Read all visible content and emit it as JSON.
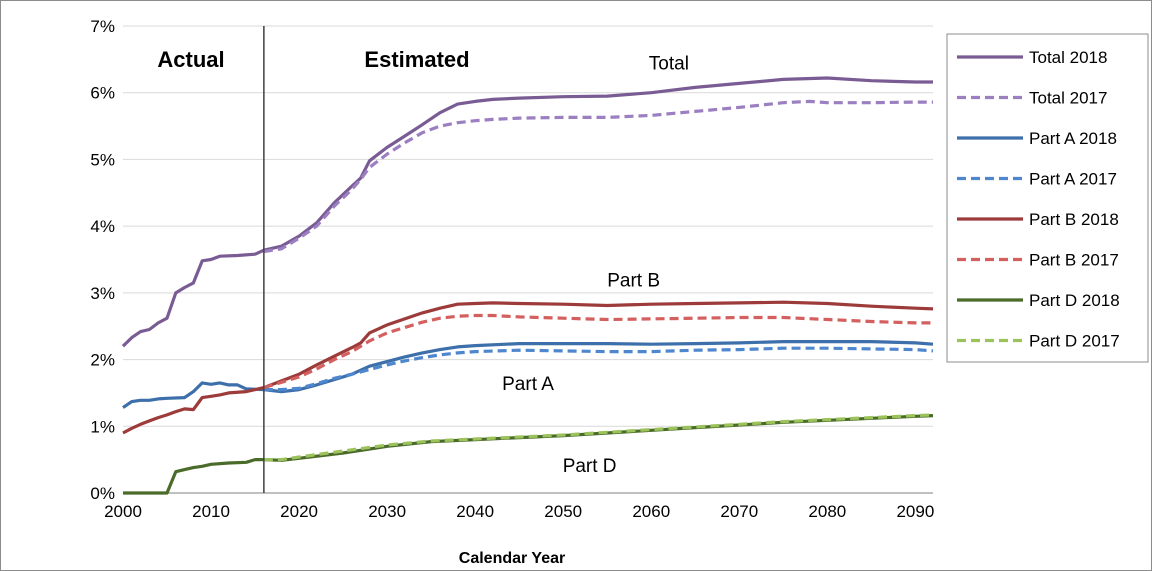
{
  "chart_data": {
    "type": "line",
    "xlabel": "Calendar Year",
    "ylabel": "",
    "xlim": [
      2000,
      2092
    ],
    "ylim": [
      0,
      7
    ],
    "x_ticks": [
      "2000",
      "2010",
      "2020",
      "2030",
      "2040",
      "2050",
      "2060",
      "2070",
      "2080",
      "2090"
    ],
    "y_ticks": [
      "0%",
      "1%",
      "2%",
      "3%",
      "4%",
      "5%",
      "6%",
      "7%"
    ],
    "region_labels": {
      "actual": "Actual",
      "estimated": "Estimated"
    },
    "divider_year": 2016,
    "annotations": [
      {
        "text": "Total",
        "x": 2062,
        "y": 6.45
      },
      {
        "text": "Part B",
        "x": 2058,
        "y": 3.2
      },
      {
        "text": "Part A",
        "x": 2046,
        "y": 1.65
      },
      {
        "text": "Part D",
        "x": 2053,
        "y": 0.42
      }
    ],
    "legend_position": "right",
    "grid": true,
    "series": [
      {
        "name": "Total 2018",
        "color": "#7a5c94",
        "dash": "solid",
        "points": [
          [
            2000,
            2.2
          ],
          [
            2001,
            2.33
          ],
          [
            2002,
            2.42
          ],
          [
            2003,
            2.45
          ],
          [
            2004,
            2.55
          ],
          [
            2005,
            2.62
          ],
          [
            2006,
            3.0
          ],
          [
            2007,
            3.08
          ],
          [
            2008,
            3.15
          ],
          [
            2009,
            3.48
          ],
          [
            2010,
            3.5
          ],
          [
            2011,
            3.55
          ],
          [
            2013,
            3.56
          ],
          [
            2015,
            3.58
          ],
          [
            2016,
            3.64
          ],
          [
            2018,
            3.7
          ],
          [
            2020,
            3.85
          ],
          [
            2022,
            4.05
          ],
          [
            2024,
            4.35
          ],
          [
            2026,
            4.6
          ],
          [
            2027,
            4.72
          ],
          [
            2028,
            4.98
          ],
          [
            2030,
            5.18
          ],
          [
            2032,
            5.35
          ],
          [
            2034,
            5.52
          ],
          [
            2036,
            5.7
          ],
          [
            2038,
            5.83
          ],
          [
            2040,
            5.87
          ],
          [
            2042,
            5.9
          ],
          [
            2045,
            5.92
          ],
          [
            2050,
            5.94
          ],
          [
            2055,
            5.95
          ],
          [
            2060,
            6.0
          ],
          [
            2065,
            6.08
          ],
          [
            2070,
            6.14
          ],
          [
            2075,
            6.2
          ],
          [
            2080,
            6.22
          ],
          [
            2085,
            6.18
          ],
          [
            2090,
            6.16
          ],
          [
            2092,
            6.16
          ]
        ]
      },
      {
        "name": "Total 2017",
        "color": "#9b7fc0",
        "dash": "dashed",
        "points": [
          [
            2016,
            3.62
          ],
          [
            2018,
            3.66
          ],
          [
            2020,
            3.82
          ],
          [
            2022,
            4.0
          ],
          [
            2024,
            4.3
          ],
          [
            2026,
            4.55
          ],
          [
            2027,
            4.7
          ],
          [
            2028,
            4.88
          ],
          [
            2030,
            5.08
          ],
          [
            2032,
            5.25
          ],
          [
            2034,
            5.4
          ],
          [
            2036,
            5.5
          ],
          [
            2038,
            5.55
          ],
          [
            2040,
            5.58
          ],
          [
            2042,
            5.6
          ],
          [
            2045,
            5.62
          ],
          [
            2050,
            5.63
          ],
          [
            2055,
            5.63
          ],
          [
            2060,
            5.66
          ],
          [
            2065,
            5.72
          ],
          [
            2070,
            5.78
          ],
          [
            2075,
            5.85
          ],
          [
            2078,
            5.87
          ],
          [
            2080,
            5.85
          ],
          [
            2085,
            5.85
          ],
          [
            2090,
            5.86
          ],
          [
            2092,
            5.86
          ]
        ]
      },
      {
        "name": "Part A 2018",
        "color": "#3d6faa",
        "dash": "solid",
        "points": [
          [
            2000,
            1.28
          ],
          [
            2001,
            1.37
          ],
          [
            2002,
            1.39
          ],
          [
            2003,
            1.39
          ],
          [
            2004,
            1.41
          ],
          [
            2005,
            1.42
          ],
          [
            2007,
            1.43
          ],
          [
            2008,
            1.52
          ],
          [
            2009,
            1.65
          ],
          [
            2010,
            1.63
          ],
          [
            2011,
            1.65
          ],
          [
            2012,
            1.62
          ],
          [
            2013,
            1.62
          ],
          [
            2014,
            1.56
          ],
          [
            2016,
            1.55
          ],
          [
            2018,
            1.52
          ],
          [
            2020,
            1.55
          ],
          [
            2022,
            1.62
          ],
          [
            2024,
            1.7
          ],
          [
            2026,
            1.78
          ],
          [
            2028,
            1.9
          ],
          [
            2030,
            1.97
          ],
          [
            2032,
            2.04
          ],
          [
            2034,
            2.1
          ],
          [
            2036,
            2.15
          ],
          [
            2038,
            2.19
          ],
          [
            2040,
            2.21
          ],
          [
            2045,
            2.24
          ],
          [
            2050,
            2.24
          ],
          [
            2055,
            2.24
          ],
          [
            2060,
            2.23
          ],
          [
            2065,
            2.24
          ],
          [
            2070,
            2.25
          ],
          [
            2075,
            2.27
          ],
          [
            2080,
            2.27
          ],
          [
            2085,
            2.27
          ],
          [
            2090,
            2.25
          ],
          [
            2092,
            2.23
          ]
        ]
      },
      {
        "name": "Part A 2017",
        "color": "#4f87cf",
        "dash": "dashed",
        "points": [
          [
            2016,
            1.55
          ],
          [
            2018,
            1.55
          ],
          [
            2020,
            1.57
          ],
          [
            2022,
            1.64
          ],
          [
            2024,
            1.72
          ],
          [
            2026,
            1.78
          ],
          [
            2028,
            1.85
          ],
          [
            2030,
            1.92
          ],
          [
            2032,
            1.98
          ],
          [
            2034,
            2.03
          ],
          [
            2036,
            2.07
          ],
          [
            2038,
            2.1
          ],
          [
            2040,
            2.12
          ],
          [
            2045,
            2.14
          ],
          [
            2050,
            2.13
          ],
          [
            2055,
            2.12
          ],
          [
            2060,
            2.12
          ],
          [
            2065,
            2.14
          ],
          [
            2070,
            2.15
          ],
          [
            2075,
            2.17
          ],
          [
            2080,
            2.17
          ],
          [
            2085,
            2.16
          ],
          [
            2090,
            2.15
          ],
          [
            2092,
            2.13
          ]
        ]
      },
      {
        "name": "Part B 2018",
        "color": "#9c3b3a",
        "dash": "solid",
        "points": [
          [
            2000,
            0.9
          ],
          [
            2001,
            0.97
          ],
          [
            2002,
            1.03
          ],
          [
            2003,
            1.08
          ],
          [
            2004,
            1.13
          ],
          [
            2005,
            1.17
          ],
          [
            2006,
            1.22
          ],
          [
            2007,
            1.26
          ],
          [
            2008,
            1.25
          ],
          [
            2009,
            1.43
          ],
          [
            2010,
            1.45
          ],
          [
            2011,
            1.47
          ],
          [
            2012,
            1.5
          ],
          [
            2014,
            1.52
          ],
          [
            2016,
            1.58
          ],
          [
            2018,
            1.68
          ],
          [
            2020,
            1.78
          ],
          [
            2022,
            1.92
          ],
          [
            2024,
            2.05
          ],
          [
            2026,
            2.18
          ],
          [
            2027,
            2.25
          ],
          [
            2028,
            2.4
          ],
          [
            2030,
            2.52
          ],
          [
            2032,
            2.61
          ],
          [
            2034,
            2.7
          ],
          [
            2036,
            2.77
          ],
          [
            2038,
            2.83
          ],
          [
            2040,
            2.84
          ],
          [
            2042,
            2.85
          ],
          [
            2045,
            2.84
          ],
          [
            2050,
            2.83
          ],
          [
            2055,
            2.81
          ],
          [
            2060,
            2.83
          ],
          [
            2065,
            2.84
          ],
          [
            2070,
            2.85
          ],
          [
            2075,
            2.86
          ],
          [
            2080,
            2.84
          ],
          [
            2085,
            2.8
          ],
          [
            2090,
            2.77
          ],
          [
            2092,
            2.76
          ]
        ]
      },
      {
        "name": "Part B 2017",
        "color": "#d35f5e",
        "dash": "dashed",
        "points": [
          [
            2016,
            1.58
          ],
          [
            2018,
            1.66
          ],
          [
            2020,
            1.74
          ],
          [
            2022,
            1.86
          ],
          [
            2024,
            2.0
          ],
          [
            2026,
            2.12
          ],
          [
            2028,
            2.28
          ],
          [
            2030,
            2.4
          ],
          [
            2032,
            2.48
          ],
          [
            2034,
            2.56
          ],
          [
            2036,
            2.62
          ],
          [
            2038,
            2.65
          ],
          [
            2040,
            2.66
          ],
          [
            2042,
            2.66
          ],
          [
            2045,
            2.64
          ],
          [
            2050,
            2.62
          ],
          [
            2055,
            2.6
          ],
          [
            2060,
            2.61
          ],
          [
            2065,
            2.62
          ],
          [
            2070,
            2.63
          ],
          [
            2075,
            2.63
          ],
          [
            2080,
            2.6
          ],
          [
            2085,
            2.57
          ],
          [
            2090,
            2.55
          ],
          [
            2092,
            2.55
          ]
        ]
      },
      {
        "name": "Part D 2018",
        "color": "#4b6b2a",
        "dash": "solid",
        "points": [
          [
            2000,
            0.0
          ],
          [
            2005,
            0.0
          ],
          [
            2006,
            0.32
          ],
          [
            2007,
            0.35
          ],
          [
            2008,
            0.38
          ],
          [
            2009,
            0.4
          ],
          [
            2010,
            0.43
          ],
          [
            2012,
            0.45
          ],
          [
            2014,
            0.46
          ],
          [
            2015,
            0.5
          ],
          [
            2016,
            0.5
          ],
          [
            2018,
            0.49
          ],
          [
            2020,
            0.52
          ],
          [
            2025,
            0.6
          ],
          [
            2030,
            0.7
          ],
          [
            2035,
            0.77
          ],
          [
            2040,
            0.8
          ],
          [
            2045,
            0.83
          ],
          [
            2050,
            0.86
          ],
          [
            2055,
            0.9
          ],
          [
            2060,
            0.94
          ],
          [
            2065,
            0.98
          ],
          [
            2070,
            1.02
          ],
          [
            2075,
            1.06
          ],
          [
            2080,
            1.09
          ],
          [
            2085,
            1.12
          ],
          [
            2090,
            1.15
          ],
          [
            2092,
            1.16
          ]
        ]
      },
      {
        "name": "Part D 2017",
        "color": "#9bc25b",
        "dash": "dashed",
        "points": [
          [
            2016,
            0.5
          ],
          [
            2018,
            0.5
          ],
          [
            2020,
            0.54
          ],
          [
            2025,
            0.63
          ],
          [
            2030,
            0.72
          ],
          [
            2035,
            0.78
          ],
          [
            2040,
            0.81
          ],
          [
            2045,
            0.84
          ],
          [
            2050,
            0.87
          ],
          [
            2055,
            0.91
          ],
          [
            2060,
            0.95
          ],
          [
            2065,
            0.99
          ],
          [
            2070,
            1.03
          ],
          [
            2075,
            1.07
          ],
          [
            2080,
            1.1
          ],
          [
            2085,
            1.13
          ],
          [
            2090,
            1.16
          ],
          [
            2092,
            1.17
          ]
        ]
      }
    ]
  }
}
